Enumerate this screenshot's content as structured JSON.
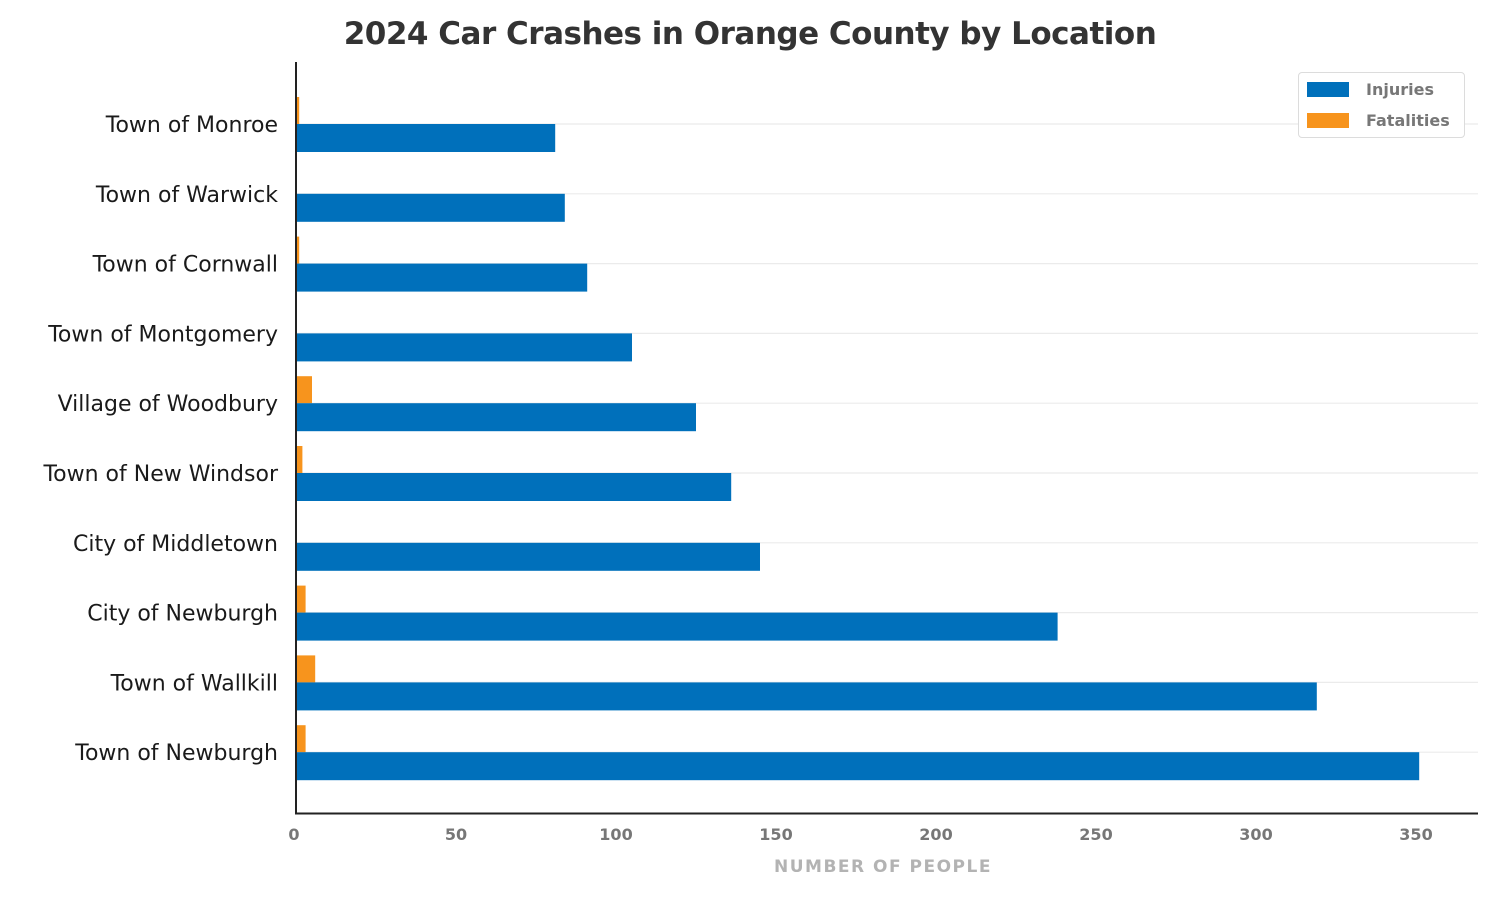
{
  "chart_data": {
    "type": "bar",
    "orientation": "horizontal",
    "title": "2024 Car Crashes in Orange County by Location",
    "xlabel": "NUMBER OF PEOPLE",
    "ylabel": "",
    "xlim": [
      0,
      370
    ],
    "x_ticks": [
      0,
      50,
      100,
      150,
      200,
      250,
      300,
      350
    ],
    "grid": true,
    "legend_position": "top-right",
    "categories": [
      "Town of Monroe",
      "Town of Warwick",
      "Town of Cornwall",
      "Town of Montgomery",
      "Village of Woodbury",
      "Town of New Windsor",
      "City of Middletown",
      "City of Newburgh",
      "Town of Wallkill",
      "Town of Newburgh"
    ],
    "series": [
      {
        "name": "Injuries",
        "color": "#0070BB",
        "values": [
          81,
          84,
          91,
          105,
          125,
          136,
          145,
          238,
          319,
          351
        ]
      },
      {
        "name": "Fatalities",
        "color": "#F7941D",
        "values": [
          1,
          0,
          1,
          0,
          5,
          2,
          0,
          3,
          6,
          3
        ]
      }
    ]
  }
}
